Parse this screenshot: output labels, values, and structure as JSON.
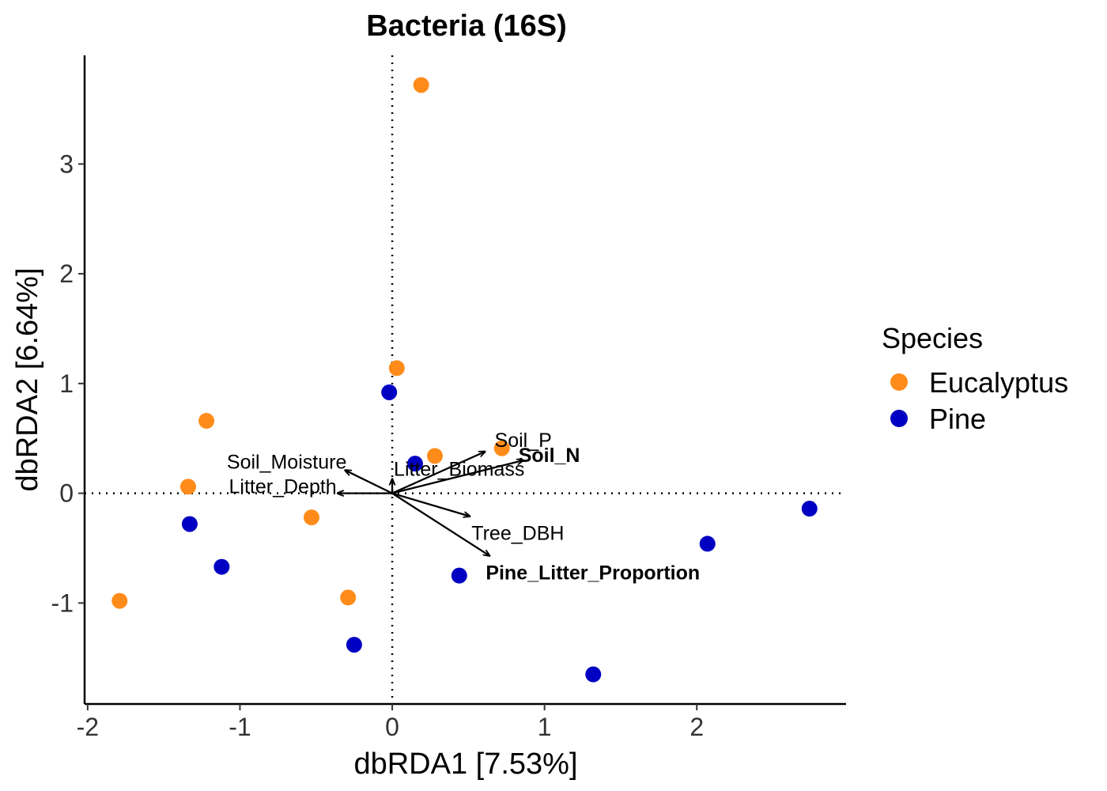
{
  "chart_data": {
    "type": "scatter",
    "title": "Bacteria (16S)",
    "xlabel": "dbRDA1 [7.53%]",
    "ylabel": "dbRDA2 [6.64%]",
    "xlim": [
      -2.02,
      2.98
    ],
    "ylim": [
      -1.92,
      3.99
    ],
    "xticks": [
      -2,
      -1,
      0,
      1,
      2
    ],
    "yticks": [
      -1,
      0,
      1,
      2,
      3
    ],
    "xtick_labels": [
      "-2",
      "-1",
      "0",
      "1",
      "2"
    ],
    "ytick_labels": [
      "-1",
      "0",
      "1",
      "2",
      "3"
    ],
    "grid": false,
    "reference_lines": {
      "x": 0,
      "y": 0,
      "style": "dotted"
    },
    "legend": {
      "title": "Species",
      "position": "right"
    },
    "series": [
      {
        "name": "Eucalyptus",
        "color": "#FF8C1A",
        "points": [
          {
            "x": 0.19,
            "y": 3.72
          },
          {
            "x": 0.03,
            "y": 1.14
          },
          {
            "x": -1.22,
            "y": 0.66
          },
          {
            "x": -1.34,
            "y": 0.06
          },
          {
            "x": 0.28,
            "y": 0.34
          },
          {
            "x": 0.72,
            "y": 0.41
          },
          {
            "x": -0.53,
            "y": -0.22
          },
          {
            "x": -0.29,
            "y": -0.95
          },
          {
            "x": -1.79,
            "y": -0.98
          }
        ]
      },
      {
        "name": "Pine",
        "color": "#0000C2",
        "points": [
          {
            "x": -0.02,
            "y": 0.92
          },
          {
            "x": 0.15,
            "y": 0.27
          },
          {
            "x": -1.33,
            "y": -0.28
          },
          {
            "x": -1.12,
            "y": -0.67
          },
          {
            "x": 0.44,
            "y": -0.75
          },
          {
            "x": -0.25,
            "y": -1.38
          },
          {
            "x": 1.32,
            "y": -1.65
          },
          {
            "x": 2.07,
            "y": -0.46
          },
          {
            "x": 2.74,
            "y": -0.14
          }
        ]
      }
    ],
    "vectors": [
      {
        "name": "Soil_P",
        "x": 0.61,
        "y": 0.38,
        "bold": false
      },
      {
        "name": "Soil_N",
        "x": 0.86,
        "y": 0.3,
        "bold": true
      },
      {
        "name": "Soil_Moisture",
        "x": -0.31,
        "y": 0.21,
        "bold": false
      },
      {
        "name": "Litter_Biomass",
        "x": 0.0,
        "y": 0.13,
        "bold": false
      },
      {
        "name": "Litter_Depth",
        "x": -0.36,
        "y": 0.0,
        "bold": false
      },
      {
        "name": "Tree_DBH",
        "x": 0.51,
        "y": -0.21,
        "bold": false
      },
      {
        "name": "Pine_Litter_Proportion",
        "x": 0.64,
        "y": -0.57,
        "bold": true
      }
    ]
  }
}
